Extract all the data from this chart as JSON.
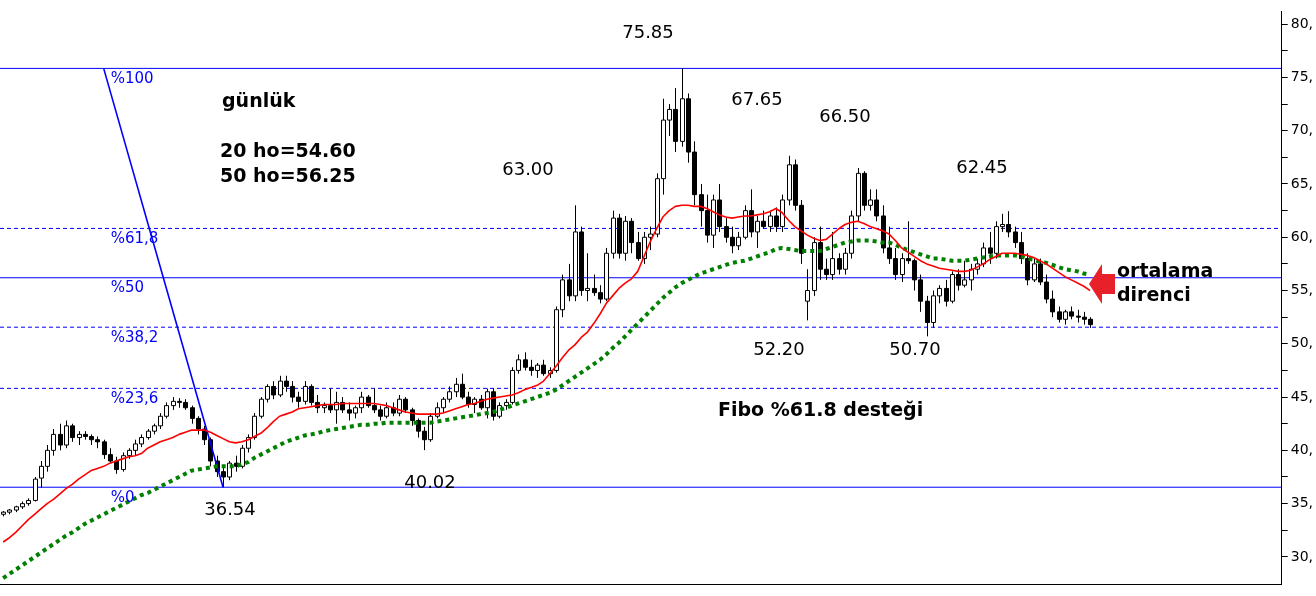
{
  "chart_data": {
    "type": "candlestick",
    "categories": [
      null,
      null,
      null,
      null,
      null,
      null,
      null,
      null,
      null,
      null,
      null,
      null,
      null,
      null,
      null,
      null,
      null,
      null,
      null,
      null,
      null,
      null,
      null,
      null,
      null,
      null,
      null,
      null,
      null,
      null,
      null,
      null,
      null,
      null,
      null,
      null,
      null,
      null,
      null,
      null,
      null,
      null,
      null,
      null,
      null,
      null,
      null,
      null,
      null,
      null,
      null,
      null,
      null,
      null,
      null,
      null,
      null,
      null,
      null,
      null,
      null,
      null,
      null,
      null,
      null,
      null,
      null,
      null,
      null,
      null,
      null,
      null,
      null,
      null,
      null,
      null,
      null,
      null,
      null,
      null,
      null,
      null,
      null,
      null,
      null,
      null,
      null,
      null,
      null,
      null,
      null,
      null,
      null,
      null,
      null,
      null,
      null,
      null,
      null,
      null,
      null,
      null,
      null,
      null,
      null,
      null,
      null,
      null,
      null,
      null,
      null,
      null,
      null,
      null,
      null,
      null,
      null,
      null,
      null,
      null,
      null,
      null,
      null,
      null,
      null,
      null,
      null,
      null,
      null,
      null,
      null,
      null,
      null,
      null,
      null,
      null,
      null,
      null,
      null,
      null,
      null,
      null,
      null,
      null,
      null,
      null,
      null,
      null,
      null,
      null,
      null,
      null,
      null,
      null,
      null,
      null,
      null,
      null,
      null,
      null,
      null,
      null,
      null,
      null,
      null,
      null,
      null,
      null,
      null,
      null,
      null,
      null,
      null,
      null,
      null,
      null,
      null,
      null,
      null,
      null,
      null,
      null,
      null,
      null,
      null,
      null,
      null,
      null,
      null,
      null,
      null,
      null,
      null,
      null,
      null,
      null,
      null,
      null,
      null,
      null,
      null,
      null,
      null,
      null
    ],
    "ohlc": [
      [
        34,
        34.3,
        33.8,
        34.2
      ],
      [
        34.2,
        34.5,
        34,
        34.4
      ],
      [
        34.4,
        34.8,
        34.2,
        34.7
      ],
      [
        34.7,
        35.2,
        34.5,
        35
      ],
      [
        35,
        35.5,
        34.8,
        35.3
      ],
      [
        35.3,
        37.5,
        35.2,
        37.3
      ],
      [
        37.4,
        39,
        36.5,
        38.5
      ],
      [
        38.5,
        40.5,
        38,
        40
      ],
      [
        40,
        42,
        39.5,
        41.5
      ],
      [
        41.5,
        42.5,
        40,
        40.5
      ],
      [
        40.5,
        42.8,
        40.2,
        42.3
      ],
      [
        42.3,
        42.5,
        40.8,
        41.2
      ],
      [
        41.2,
        41.8,
        40.5,
        41.5
      ],
      [
        41.5,
        41.8,
        41,
        41.3
      ],
      [
        41.3,
        41.5,
        40.5,
        41
      ],
      [
        41,
        41.3,
        40.2,
        40.8
      ],
      [
        40.8,
        41,
        39.2,
        39.6
      ],
      [
        39.6,
        40.2,
        38.8,
        39
      ],
      [
        39,
        39.4,
        37.8,
        38.2
      ],
      [
        38.2,
        39.8,
        38,
        39.5
      ],
      [
        39.5,
        40.2,
        39.2,
        40
      ],
      [
        40,
        41,
        39.5,
        40.6
      ],
      [
        40.6,
        41.5,
        40.3,
        41.2
      ],
      [
        41.2,
        42,
        41,
        41.8
      ],
      [
        41.8,
        42.5,
        41.5,
        42.3
      ],
      [
        42.3,
        43.5,
        42,
        43.2
      ],
      [
        43.2,
        44.5,
        43,
        44.2
      ],
      [
        44.2,
        45,
        43.8,
        44.6
      ],
      [
        44.6,
        44.9,
        44,
        44.5
      ],
      [
        44.5,
        44.8,
        43.8,
        44
      ],
      [
        44,
        44.2,
        42.5,
        43
      ],
      [
        43,
        43.2,
        41.5,
        42
      ],
      [
        42,
        42.3,
        40.5,
        41
      ],
      [
        41,
        41.2,
        38.5,
        39
      ],
      [
        39,
        39.5,
        37.5,
        38
      ],
      [
        38,
        38.5,
        36.54,
        37.5
      ],
      [
        37.5,
        39,
        37.2,
        38.8
      ],
      [
        38.8,
        39.5,
        38,
        38.5
      ],
      [
        38.5,
        40.5,
        38.3,
        40.2
      ],
      [
        40.2,
        41.5,
        39.8,
        41.2
      ],
      [
        41.2,
        43.5,
        41,
        43.2
      ],
      [
        43.2,
        45,
        43,
        44.8
      ],
      [
        44.8,
        46.2,
        44.5,
        46
      ],
      [
        46,
        46.5,
        44.8,
        45.2
      ],
      [
        45.2,
        47,
        45,
        46.5
      ],
      [
        46.5,
        47,
        45.5,
        46
      ],
      [
        46,
        46.5,
        44.5,
        45
      ],
      [
        45,
        45.5,
        44,
        44.6
      ],
      [
        44.6,
        46.5,
        44.3,
        46
      ],
      [
        46,
        46.2,
        44.2,
        44.5
      ],
      [
        44.5,
        45.2,
        43.5,
        44
      ],
      [
        44,
        44.5,
        43.5,
        44.2
      ],
      [
        44.2,
        45.8,
        43.5,
        43.8
      ],
      [
        43.8,
        45.5,
        42.5,
        44.5
      ],
      [
        44.5,
        45,
        43.5,
        43.8
      ],
      [
        43.8,
        44.5,
        42.8,
        43.5
      ],
      [
        43.5,
        44.2,
        43,
        44
      ],
      [
        44,
        45.5,
        43.5,
        45
      ],
      [
        45,
        45.2,
        44,
        44.2
      ],
      [
        44.2,
        45.8,
        43.5,
        43.8
      ],
      [
        43.8,
        44.2,
        42.8,
        43.2
      ],
      [
        43.2,
        44.5,
        43,
        44
      ],
      [
        44,
        44.5,
        43.2,
        43.5
      ],
      [
        43.5,
        45.2,
        43.2,
        44.8
      ],
      [
        44.8,
        45,
        43.5,
        43.8
      ],
      [
        43.8,
        44,
        42.3,
        42.8
      ],
      [
        42.8,
        43,
        41.2,
        41.8
      ],
      [
        41.8,
        42.2,
        40.02,
        41
      ],
      [
        41,
        43.5,
        40.8,
        43.2
      ],
      [
        43.2,
        44.5,
        43,
        44
      ],
      [
        44,
        45,
        43.5,
        44.8
      ],
      [
        44.8,
        46,
        44.5,
        45.5
      ],
      [
        45.5,
        46.8,
        45,
        46.2
      ],
      [
        46.2,
        47.2,
        44.8,
        45
      ],
      [
        45,
        45.5,
        44,
        44.3
      ],
      [
        44.3,
        45,
        43.5,
        44.8
      ],
      [
        44.8,
        45.2,
        43.8,
        44
      ],
      [
        44,
        45.8,
        43,
        45.5
      ],
      [
        45.5,
        45.8,
        42.8,
        43.2
      ],
      [
        43.2,
        44.5,
        43,
        44.2
      ],
      [
        44.2,
        44.8,
        43.8,
        44.5
      ],
      [
        44.5,
        47.8,
        44.3,
        47.5
      ],
      [
        47.5,
        49,
        47.2,
        48.5
      ],
      [
        48.5,
        49.2,
        47.5,
        47.8
      ],
      [
        47.8,
        48.5,
        47,
        47.5
      ],
      [
        47.5,
        48.2,
        46.8,
        48
      ],
      [
        48,
        48.5,
        47,
        47.2
      ],
      [
        47.2,
        47.8,
        46.8,
        47.5
      ],
      [
        47.5,
        53.5,
        47.3,
        53.2
      ],
      [
        53.2,
        56.5,
        52.5,
        56
      ],
      [
        56,
        57.5,
        54,
        54.5
      ],
      [
        54.5,
        63,
        54,
        60.5
      ],
      [
        60.5,
        61,
        54.5,
        55
      ],
      [
        55,
        58.5,
        54,
        55.2
      ],
      [
        55.2,
        56.5,
        54.5,
        54.8
      ],
      [
        54.8,
        55.5,
        53.8,
        54.2
      ],
      [
        54.2,
        59,
        54,
        58.5
      ],
      [
        58.5,
        62.5,
        58,
        61.8
      ],
      [
        61.8,
        62.2,
        58,
        58.5
      ],
      [
        58.5,
        62,
        57.8,
        61.5
      ],
      [
        61.5,
        61.8,
        58.5,
        59.5
      ],
      [
        59.5,
        60.5,
        57.8,
        58
      ],
      [
        58,
        60.5,
        57.5,
        60
      ],
      [
        60,
        61,
        58.8,
        60.3
      ],
      [
        60.3,
        66,
        60,
        65.5
      ],
      [
        65.5,
        73,
        64,
        71
      ],
      [
        71,
        72.5,
        69.5,
        72
      ],
      [
        72,
        74,
        68,
        69
      ],
      [
        69,
        75.85,
        68.5,
        73
      ],
      [
        73,
        73.5,
        67,
        68
      ],
      [
        68,
        69,
        63,
        64
      ],
      [
        64,
        65,
        61,
        62.5
      ],
      [
        62.5,
        64,
        59.5,
        60.2
      ],
      [
        60.2,
        64,
        59,
        63.5
      ],
      [
        63.5,
        65,
        60.5,
        61
      ],
      [
        61,
        61.8,
        59.5,
        60
      ],
      [
        60,
        61,
        58.5,
        59.2
      ],
      [
        59.2,
        60.5,
        58.8,
        60
      ],
      [
        60,
        63,
        59.8,
        62.5
      ],
      [
        62.5,
        64.5,
        60,
        60.5
      ],
      [
        60.5,
        62,
        59,
        61.5
      ],
      [
        61.5,
        62.5,
        60.8,
        61
      ],
      [
        61,
        62.5,
        60.5,
        62
      ],
      [
        62,
        62.8,
        60.5,
        61
      ],
      [
        61,
        64,
        60.5,
        63.5
      ],
      [
        63.5,
        67.65,
        63,
        66.8
      ],
      [
        66.8,
        67.3,
        62.5,
        63
      ],
      [
        63,
        63.5,
        57.5,
        58.5
      ],
      [
        54,
        57,
        52.2,
        55
      ],
      [
        55,
        60,
        54.5,
        59.5
      ],
      [
        59.5,
        61,
        56,
        57
      ],
      [
        57,
        58,
        56,
        56.5
      ],
      [
        56.5,
        60.5,
        56,
        58
      ],
      [
        58,
        58.5,
        56.5,
        57
      ],
      [
        57,
        59,
        56.5,
        58.5
      ],
      [
        58.5,
        62.5,
        58,
        62
      ],
      [
        62,
        66.5,
        61.5,
        66
      ],
      [
        66,
        66.2,
        62.5,
        63
      ],
      [
        63,
        64.5,
        62.5,
        63.5
      ],
      [
        63.5,
        64.5,
        61.5,
        62
      ],
      [
        62,
        63,
        58.5,
        59
      ],
      [
        59,
        61,
        57.5,
        58
      ],
      [
        58,
        59,
        56,
        56.5
      ],
      [
        56.5,
        58.5,
        55.8,
        58
      ],
      [
        58,
        61.5,
        57.5,
        57.8
      ],
      [
        57.8,
        58,
        55,
        56
      ],
      [
        56,
        56.5,
        53,
        54
      ],
      [
        54,
        54.5,
        50.7,
        52
      ],
      [
        52,
        55,
        51.5,
        54.5
      ],
      [
        54.5,
        55.5,
        53.8,
        55.2
      ],
      [
        55.2,
        56,
        53.5,
        54
      ],
      [
        54,
        56.8,
        53.8,
        56.5
      ],
      [
        56.5,
        57,
        55,
        55.5
      ],
      [
        55.5,
        57.8,
        55.3,
        56
      ],
      [
        56,
        57.5,
        55,
        57
      ],
      [
        57,
        58,
        56.5,
        57.5
      ],
      [
        57.5,
        59.5,
        57.2,
        59
      ],
      [
        59,
        60.5,
        57.5,
        58.5
      ],
      [
        58.5,
        61.5,
        58,
        61
      ],
      [
        61,
        62.2,
        60.5,
        61.2
      ],
      [
        61.2,
        62.45,
        60,
        60.5
      ],
      [
        60.5,
        61,
        59,
        59.5
      ],
      [
        59.5,
        60.5,
        57.5,
        58
      ],
      [
        58,
        58.5,
        55.5,
        56
      ],
      [
        56,
        58,
        55.8,
        57.5
      ],
      [
        57.5,
        58,
        55.5,
        55.8
      ],
      [
        55.8,
        56.5,
        53.8,
        54.2
      ],
      [
        54.2,
        55,
        52.5,
        53
      ],
      [
        53,
        53.5,
        52,
        52.3
      ],
      [
        52.3,
        53.2,
        51.8,
        53
      ],
      [
        53,
        53.5,
        52.3,
        52.6
      ],
      [
        52.6,
        53.2,
        52,
        52.5
      ],
      [
        52.5,
        53,
        51.8,
        52.3
      ],
      [
        52.3,
        52.5,
        51.5,
        51.8
      ],
      null,
      null,
      null,
      null,
      null,
      null,
      null,
      null,
      null,
      null,
      null,
      null,
      null,
      null,
      null,
      null,
      null,
      null,
      null,
      null,
      null,
      null,
      null,
      null,
      null,
      null,
      null,
      null,
      null,
      null
    ],
    "series": [
      {
        "type": "line",
        "color": "#ff0000",
        "values": [
          31.4,
          31.8,
          32.3,
          32.9,
          33.5,
          34.0,
          34.5,
          35.0,
          35.4,
          35.9,
          36.4,
          36.8,
          37.3,
          37.7,
          38.1,
          38.3,
          38.5,
          38.8,
          39.0,
          39.2,
          39.4,
          39.5,
          39.7,
          40.2,
          40.5,
          40.8,
          41.0,
          41.2,
          41.5,
          41.7,
          41.9,
          41.9,
          41.9,
          41.7,
          41.4,
          41.1,
          40.8,
          40.7,
          40.8,
          41.0,
          41.3,
          41.6,
          42.1,
          42.7,
          43.2,
          43.4,
          43.6,
          43.9,
          44.0,
          44.1,
          44.2,
          44.3,
          44.3,
          44.3,
          44.4,
          44.4,
          44.4,
          44.4,
          44.4,
          44.4,
          44.3,
          44.2,
          44.0,
          43.8,
          43.6,
          43.5,
          43.4,
          43.4,
          43.4,
          43.4,
          43.5,
          43.7,
          43.9,
          44.1,
          44.3,
          44.4,
          44.6,
          44.8,
          44.9,
          45.0,
          45.1,
          45.2,
          45.4,
          45.7,
          45.9,
          46.1,
          46.5,
          47.2,
          47.9,
          48.7,
          49.4,
          49.9,
          50.6,
          51.1,
          51.9,
          52.8,
          53.8,
          54.5,
          55.2,
          55.7,
          56.1,
          56.8,
          58.2,
          59.6,
          60.8,
          61.9,
          62.5,
          62.9,
          63.0,
          63.0,
          62.9,
          62.9,
          62.7,
          62.4,
          62.1,
          61.9,
          61.8,
          61.9,
          62.0,
          62.0,
          62.1,
          62.2,
          62.4,
          62.7,
          62.3,
          61.6,
          61.0,
          60.6,
          60.2,
          59.9,
          59.7,
          59.8,
          60.3,
          60.8,
          61.2,
          61.4,
          61.5,
          61.3,
          61.0,
          60.8,
          60.6,
          60.3,
          59.7,
          59.0,
          58.6,
          58.2,
          57.8,
          57.5,
          57.3,
          57.1,
          57.0,
          56.9,
          56.8,
          56.8,
          56.9,
          57.2,
          57.5,
          57.9,
          58.2,
          58.5,
          58.5,
          58.5,
          58.4,
          58.3,
          58.1,
          57.8,
          57.5,
          57.1,
          56.7,
          56.3,
          56.0,
          55.7,
          55.4,
          55.0,
          null,
          null,
          null,
          null,
          null,
          null,
          null,
          null,
          null,
          null,
          null,
          null,
          null,
          null,
          null,
          null,
          null,
          null,
          null,
          null,
          null,
          null,
          null,
          null,
          null,
          null,
          null,
          null,
          null,
          null
        ]
      },
      {
        "type": "line",
        "color": "#008000",
        "line_style": "dotted",
        "values": [
          28.0,
          28.4,
          28.8,
          29.2,
          29.6,
          30.0,
          30.4,
          30.8,
          31.2,
          31.6,
          32.0,
          32.3,
          32.7,
          33.1,
          33.4,
          33.7,
          34.0,
          34.3,
          34.6,
          34.9,
          35.2,
          35.5,
          35.8,
          36.0,
          36.3,
          36.6,
          36.9,
          37.2,
          37.5,
          37.8,
          38.1,
          38.2,
          38.3,
          38.4,
          38.5,
          38.5,
          38.5,
          38.5,
          38.7,
          38.9,
          39.3,
          39.6,
          39.9,
          40.2,
          40.5,
          40.8,
          41.0,
          41.2,
          41.4,
          41.5,
          41.6,
          41.8,
          41.9,
          42.0,
          42.1,
          42.2,
          42.3,
          42.4,
          42.4,
          42.5,
          42.5,
          42.6,
          42.6,
          42.6,
          42.6,
          42.6,
          42.6,
          42.6,
          42.6,
          42.7,
          42.8,
          42.9,
          43.0,
          43.1,
          43.2,
          43.3,
          43.4,
          43.5,
          43.6,
          43.8,
          44.0,
          44.2,
          44.4,
          44.6,
          44.8,
          45.0,
          45.2,
          45.4,
          45.7,
          46.1,
          46.5,
          46.9,
          47.3,
          47.7,
          48.1,
          48.5,
          49.0,
          49.6,
          50.1,
          50.7,
          51.3,
          51.9,
          52.5,
          53.1,
          53.7,
          54.3,
          54.8,
          55.3,
          55.7,
          56.0,
          56.3,
          56.6,
          56.8,
          57.0,
          57.2,
          57.4,
          57.6,
          57.7,
          57.8,
          58.0,
          58.2,
          58.4,
          58.6,
          58.9,
          59.0,
          58.9,
          58.8,
          58.7,
          58.7,
          58.7,
          58.7,
          58.9,
          59.1,
          59.3,
          59.5,
          59.6,
          59.7,
          59.7,
          59.7,
          59.6,
          59.5,
          59.5,
          59.3,
          59.0,
          58.8,
          58.6,
          58.4,
          58.2,
          58.0,
          58.0,
          57.9,
          57.8,
          57.8,
          57.8,
          57.9,
          58.0,
          58.1,
          58.2,
          58.3,
          58.3,
          58.3,
          58.3,
          58.2,
          58.0,
          57.9,
          57.7,
          57.6,
          57.4,
          57.2,
          57.0,
          56.9,
          56.8,
          56.6,
          56.5,
          null,
          null,
          null,
          null,
          null,
          null,
          null,
          null,
          null,
          null,
          null,
          null,
          null,
          null,
          null,
          null,
          null,
          null,
          null,
          null,
          null,
          null,
          null,
          null,
          null,
          null,
          null,
          null,
          null,
          null
        ]
      },
      {
        "type": "line",
        "color": "#0000ff",
        "values": [
          null,
          null,
          null,
          null,
          null,
          null,
          null,
          null,
          null,
          null,
          null,
          null,
          null,
          null,
          null,
          null,
          75.85,
          null,
          null,
          null,
          null,
          null,
          null,
          null,
          null,
          null,
          null,
          null,
          null,
          null,
          null,
          null,
          null,
          null,
          null,
          36.54,
          null,
          null,
          null,
          null,
          null,
          null,
          null,
          null,
          null,
          null,
          null,
          null,
          null,
          null,
          null,
          null,
          null,
          null,
          null,
          null,
          null,
          null,
          null,
          null,
          null,
          null,
          null,
          null,
          null,
          null,
          null,
          null,
          null,
          null,
          null,
          null,
          null,
          null,
          null,
          null,
          null,
          null,
          null,
          null,
          null,
          null,
          null,
          null,
          null,
          null,
          null,
          null,
          null,
          null,
          null,
          null,
          null,
          null,
          null,
          null,
          null,
          null,
          null,
          null,
          null,
          null,
          null,
          null,
          null,
          null,
          null,
          null,
          null,
          null,
          null,
          null,
          null,
          null,
          null,
          null,
          null,
          null,
          null,
          null,
          null,
          null,
          null,
          null,
          null,
          null,
          null,
          null,
          null,
          null,
          null,
          null,
          null,
          null,
          null,
          null,
          null,
          null,
          null,
          null,
          null,
          null,
          null,
          null,
          null,
          null,
          null,
          null,
          null,
          null,
          null,
          null,
          null,
          null,
          null,
          null,
          null,
          null,
          null,
          null,
          null,
          null,
          null,
          null,
          null,
          null,
          null,
          null,
          null,
          null,
          null,
          null,
          null,
          null,
          null,
          null,
          null,
          null,
          null,
          null,
          null,
          null,
          null,
          null,
          null,
          null,
          null,
          null,
          null,
          null,
          null,
          null,
          null,
          null,
          null,
          null,
          null,
          null,
          null,
          null,
          null,
          null,
          null,
          null
        ]
      }
    ],
    "ylim": [
      27.4,
      81.2
    ],
    "yticks": [
      {
        "value": 30,
        "label": "30,"
      },
      {
        "value": 32.5,
        "label": null
      },
      {
        "value": 35,
        "label": "35,"
      },
      {
        "value": 37.5,
        "label": null
      },
      {
        "value": 40,
        "label": "40,"
      },
      {
        "value": 42.5,
        "label": null
      },
      {
        "value": 45,
        "label": "45,"
      },
      {
        "value": 47.5,
        "label": null
      },
      {
        "value": 50,
        "label": "50,"
      },
      {
        "value": 52.5,
        "label": null
      },
      {
        "value": 55,
        "label": "55,"
      },
      {
        "value": 57.5,
        "label": null
      },
      {
        "value": 60,
        "label": "60,"
      },
      {
        "value": 62.5,
        "label": null
      },
      {
        "value": 65,
        "label": "65,"
      },
      {
        "value": 67.5,
        "label": null
      },
      {
        "value": 70,
        "label": "70,"
      },
      {
        "value": 72.5,
        "label": null
      },
      {
        "value": 75,
        "label": "75,"
      },
      {
        "value": 77.5,
        "label": null
      },
      {
        "value": 80,
        "label": "80,"
      }
    ],
    "tick_labels": "y",
    "ref_lines": [
      {
        "axis": "y",
        "value": 75.85,
        "color": "#0000ff",
        "line_style": "solid"
      },
      {
        "axis": "y",
        "value": 60.83,
        "color": "#0000ff",
        "line_style": "dashed"
      },
      {
        "axis": "y",
        "value": 56.2,
        "color": "#0000ff",
        "line_style": "solid"
      },
      {
        "axis": "y",
        "value": 51.56,
        "color": "#0000ff",
        "line_style": "dashed"
      },
      {
        "axis": "y",
        "value": 45.82,
        "color": "#0000ff",
        "line_style": "dashed"
      },
      {
        "axis": "y",
        "value": 36.54,
        "color": "#0000ff",
        "line_style": "solid"
      }
    ],
    "annotations": [
      "günlük",
      "20 ho=54.60",
      "50 ho=56.25",
      "Fibo %61.8 desteği",
      "ortalama direnci",
      "75.85",
      "63.00",
      "67.65",
      "66.50",
      "62.45",
      "36.54",
      "40.02",
      "52.20",
      "50.70",
      {
        "text": "%100",
        "y": 75.85
      },
      {
        "text": "%61,8",
        "y": 60.83
      },
      {
        "text": "%50",
        "y": 56.2
      },
      {
        "text": "%38,2",
        "y": 51.56
      },
      {
        "text": "%23,6",
        "y": 45.82
      },
      {
        "text": "%0",
        "y": 36.54
      }
    ]
  }
}
